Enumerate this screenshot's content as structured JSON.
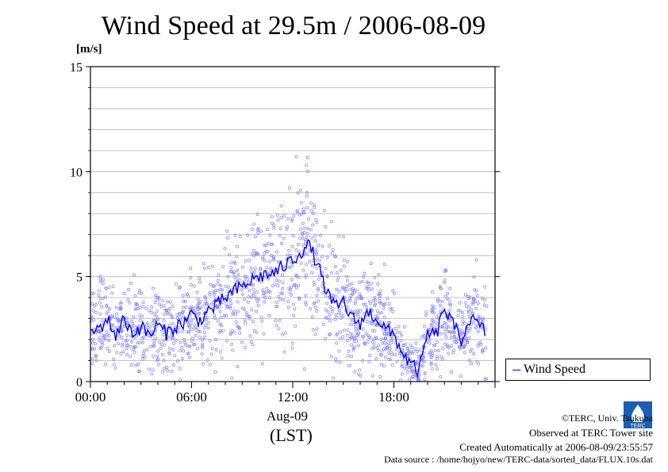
{
  "title": "Wind Speed at 29.5m / 2006-08-09",
  "unit_label": "[m/s]",
  "date_label": "Aug-09",
  "tz_label": "(LST)",
  "legend_label": "Wind Speed",
  "credits": {
    "copyright": "©TERC, Univ. Tsukuba",
    "observed": "Observed at TERC Tower site",
    "created": "Created Automatically at 2006-08-09/23:55:57",
    "source": "Data source : /home/hojyo/new/TERC-data/sorted_data/FLUX.10s.dat"
  },
  "logo_text": "TERC",
  "colors": {
    "series_line": "#0000ff",
    "scatter_points": "#8080ff",
    "grid": "#b0b0b0"
  },
  "chart_data": {
    "type": "line",
    "title": "Wind Speed at 29.5m / 2006-08-09",
    "xlabel": "Aug-09 (LST)",
    "ylabel": "[m/s]",
    "xlim": [
      0,
      23.5
    ],
    "ylim": [
      0,
      15
    ],
    "x_ticks": [
      "00:00",
      "06:00",
      "12:00",
      "18:00"
    ],
    "y_ticks": [
      0,
      5,
      10,
      15
    ],
    "grid": true,
    "legend": "bottom-right, outside plot",
    "series": [
      {
        "name": "Wind Speed",
        "x_hours": [
          0,
          0.5,
          1,
          1.5,
          2,
          2.5,
          3,
          3.5,
          4,
          4.5,
          5,
          5.5,
          6,
          6.5,
          7,
          7.5,
          8,
          8.5,
          9,
          9.5,
          10,
          10.5,
          11,
          11.5,
          12,
          12.5,
          13,
          13.5,
          14,
          14.5,
          15,
          15.5,
          16,
          16.5,
          17,
          17.5,
          18,
          18.5,
          19,
          19.5,
          20,
          20.5,
          21,
          21.5,
          22,
          22.5,
          23,
          23.5
        ],
        "values": [
          2.4,
          2.5,
          3.0,
          2.2,
          3.0,
          2.3,
          2.6,
          2.2,
          2.7,
          2.3,
          2.6,
          2.8,
          3.2,
          2.9,
          3.4,
          3.6,
          4.0,
          4.3,
          4.5,
          4.8,
          5.0,
          5.1,
          5.2,
          5.5,
          5.8,
          6.2,
          6.5,
          5.5,
          4.3,
          3.5,
          3.8,
          3.0,
          2.8,
          3.3,
          3.0,
          2.5,
          2.2,
          1.4,
          0.8,
          0.5,
          2.3,
          2.2,
          3.5,
          2.7,
          2.0,
          3.0,
          2.7,
          2.3
        ]
      }
    ],
    "scatter_note": "10-second samples shown as light blue open circles around the line"
  }
}
